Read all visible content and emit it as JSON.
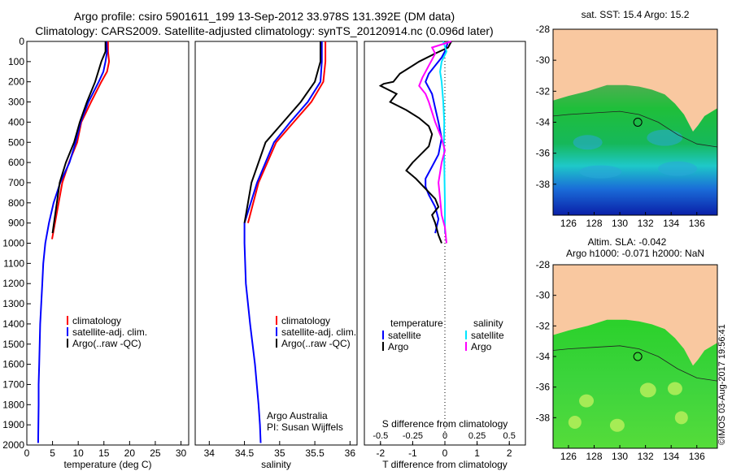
{
  "header": {
    "title_line1": "Argo profile: csiro 5901611_199 13-Sep-2012 33.978S 131.392E (DM data)",
    "title_line2": "Climatology: CARS2009. Satellite-adjusted climatology: synTS_20120914.nc (0.096d later)"
  },
  "watermark": "©IMOS 03-Aug-2017 19:56:41",
  "colors": {
    "climatology": "#ff0000",
    "satellite": "#0000ff",
    "argo": "#000000",
    "sal_satellite": "#00e5ff",
    "sal_argo": "#ff00ff",
    "land": "#f9c8a0",
    "ocean_green": "#22c322"
  },
  "chart_data": [
    {
      "id": "temperature",
      "type": "line",
      "xlabel": "temperature (deg C)",
      "xlim": [
        0,
        31.5
      ],
      "ylim": [
        2000,
        0
      ],
      "xticks": [
        0,
        5,
        10,
        15,
        20,
        25,
        30
      ],
      "yticks": [
        0,
        100,
        200,
        300,
        400,
        500,
        600,
        700,
        800,
        900,
        1000,
        1100,
        1200,
        1300,
        1400,
        1500,
        1600,
        1700,
        1800,
        1900,
        2000
      ],
      "legend": [
        "climatology",
        "satellite-adj. clim.",
        "Argo(..raw -QC)"
      ],
      "series": [
        {
          "name": "climatology",
          "x": [
            15.8,
            15.8,
            16.0,
            15.6,
            14.5,
            12.5,
            10.6,
            9.8,
            8.2,
            6.9,
            4.9
          ],
          "y": [
            0,
            50,
            100,
            150,
            200,
            300,
            400,
            500,
            600,
            700,
            980
          ]
        },
        {
          "name": "satellite-adj. clim.",
          "x": [
            15.5,
            15.6,
            15.3,
            14.9,
            14.0,
            12.0,
            10.5,
            9.5,
            8.3,
            6.5,
            5.2,
            4.3,
            3.6,
            3.2,
            3.0,
            2.8,
            2.6,
            2.5,
            2.4,
            2.3,
            2.3,
            2.2
          ],
          "y": [
            0,
            50,
            100,
            150,
            200,
            300,
            400,
            500,
            600,
            700,
            800,
            900,
            1000,
            1100,
            1200,
            1300,
            1400,
            1500,
            1600,
            1700,
            1800,
            1990
          ]
        },
        {
          "name": "Argo(..raw -QC)",
          "x": [
            15.3,
            15.3,
            14.5,
            13.9,
            13.3,
            11.7,
            10.3,
            9.2,
            7.6,
            6.4,
            5.0
          ],
          "y": [
            0,
            50,
            100,
            150,
            200,
            300,
            400,
            500,
            600,
            700,
            950
          ]
        }
      ]
    },
    {
      "id": "salinity",
      "type": "line",
      "xlabel": "salinity",
      "xlim": [
        33.8,
        36.1
      ],
      "ylim": [
        2000,
        0
      ],
      "xticks": [
        34,
        34.5,
        35,
        35.5,
        36
      ],
      "legend": [
        "climatology",
        "satellite-adj. clim.",
        "Argo(..raw -QC)"
      ],
      "annotation": [
        "Argo Australia",
        "PI: Susan Wijffels"
      ],
      "series": [
        {
          "name": "climatology",
          "x": [
            35.65,
            35.65,
            35.62,
            35.45,
            35.2,
            34.95,
            34.7,
            34.55
          ],
          "y": [
            0,
            100,
            200,
            300,
            400,
            500,
            700,
            900
          ]
        },
        {
          "name": "satellite-adj. clim.",
          "x": [
            35.6,
            35.6,
            35.58,
            35.4,
            35.15,
            34.92,
            34.68,
            34.5,
            34.5,
            34.52,
            34.58,
            34.65,
            34.7,
            34.72,
            34.73
          ],
          "y": [
            0,
            100,
            200,
            300,
            400,
            500,
            700,
            900,
            1000,
            1200,
            1400,
            1600,
            1800,
            1900,
            1990
          ]
        },
        {
          "name": "Argo(..raw -QC)",
          "x": [
            35.58,
            35.58,
            35.5,
            35.3,
            35.05,
            34.8,
            34.6,
            34.5
          ],
          "y": [
            0,
            100,
            200,
            300,
            400,
            500,
            700,
            900
          ]
        }
      ]
    },
    {
      "id": "differences",
      "type": "line",
      "xlabel": "T difference from climatology",
      "xlabel2": "S difference from climatology",
      "xlim": [
        -2.5,
        2.5
      ],
      "ylim": [
        2000,
        0
      ],
      "xticks": [
        -2,
        -1,
        0,
        1,
        2
      ],
      "xticks2": [
        -0.5,
        -0.25,
        0,
        0.25,
        0.5
      ],
      "legend_headers": [
        "temperature",
        "salinity"
      ],
      "legend": [
        "satellite",
        "Argo",
        "satellite",
        "Argo"
      ],
      "series": [
        {
          "name": "temperature satellite",
          "x": [
            0.1,
            0,
            -0.1,
            -0.3,
            -0.5,
            -0.6,
            -0.4,
            -0.3,
            -0.2,
            -0.1,
            -0.2,
            -0.4,
            -0.6,
            -0.6,
            -0.5,
            -0.3,
            -0.2,
            -0.3
          ],
          "y": [
            0,
            50,
            80,
            120,
            160,
            200,
            260,
            330,
            400,
            480,
            560,
            620,
            680,
            720,
            760,
            820,
            880,
            950
          ]
        },
        {
          "name": "temperature Argo",
          "x": [
            0.2,
            0.1,
            -0.3,
            -0.8,
            -1.4,
            -1.6,
            -1.9,
            -2.0,
            -1.5,
            -1.7,
            -1.2,
            -0.8,
            -0.5,
            -0.4,
            -0.5,
            -1.0,
            -1.2,
            -0.9,
            -0.6,
            -0.3,
            -0.2,
            -0.4,
            -0.3,
            -0.2,
            -0.1
          ],
          "y": [
            0,
            30,
            60,
            100,
            160,
            200,
            210,
            220,
            260,
            300,
            340,
            380,
            420,
            460,
            520,
            600,
            640,
            680,
            730,
            780,
            820,
            860,
            900,
            960,
            1000
          ]
        },
        {
          "name": "salinity satellite",
          "x": [
            -0.05,
            0.05,
            -0.1,
            -0.15,
            -0.1,
            -0.05,
            -0.02,
            -0.03,
            -0.02,
            -0.01,
            0,
            0
          ],
          "y": [
            0,
            50,
            100,
            150,
            200,
            300,
            400,
            500,
            600,
            700,
            800,
            950
          ]
        },
        {
          "name": "salinity Argo",
          "x": [
            0.2,
            -0.4,
            -0.3,
            -0.4,
            -0.5,
            -0.7,
            -0.8,
            -0.6,
            -0.5,
            -0.3,
            -0.1,
            0.0,
            -0.1,
            -0.2,
            -0.15,
            -0.1,
            0.0,
            0.05
          ],
          "y": [
            0,
            30,
            60,
            90,
            120,
            180,
            220,
            260,
            300,
            400,
            480,
            540,
            600,
            700,
            780,
            860,
            920,
            1000
          ]
        }
      ]
    }
  ],
  "maps": [
    {
      "id": "map-sst",
      "title": "sat. SST: 15.4 Argo: 15.2",
      "title2": "",
      "xticks": [
        126,
        128,
        130,
        132,
        134,
        136
      ],
      "yticks": [
        -28,
        -30,
        -32,
        -34,
        -36,
        -38
      ],
      "xlim": [
        124.8,
        137.6
      ],
      "ylim": [
        -40,
        -28
      ],
      "profile": [
        131.4,
        -34.0
      ]
    },
    {
      "id": "map-sla",
      "title": "Altim. SLA: -0.042",
      "title2": "Argo h1000: -0.071 h2000: NaN",
      "xticks": [
        126,
        128,
        130,
        132,
        134,
        136
      ],
      "yticks": [
        -28,
        -30,
        -32,
        -34,
        -36,
        -38
      ],
      "xlim": [
        124.8,
        137.6
      ],
      "ylim": [
        -40,
        -28
      ],
      "profile": [
        131.4,
        -34.0
      ]
    }
  ]
}
